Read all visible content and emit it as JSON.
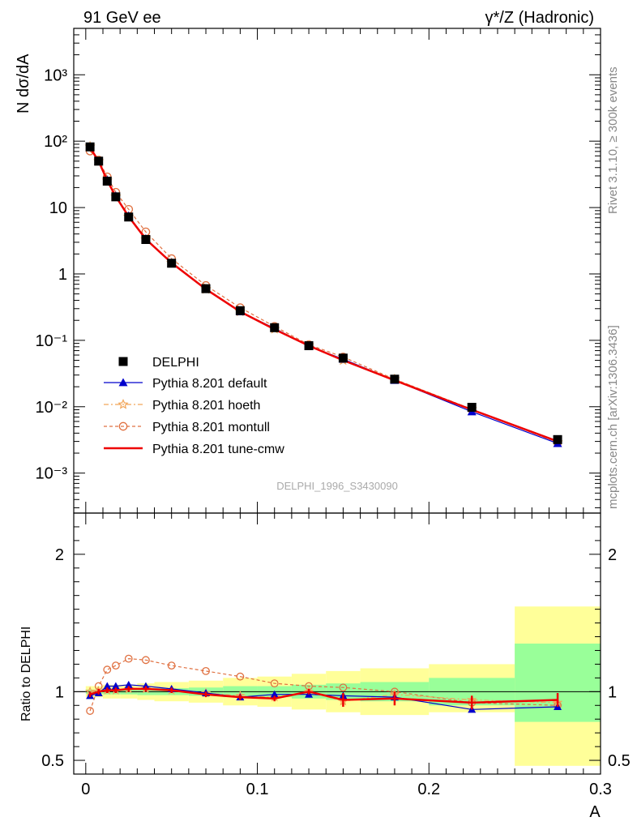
{
  "header": {
    "left_label": "91 GeV ee",
    "right_label": "γ*/Z (Hadronic)"
  },
  "side_text": {
    "top": "Rivet 3.1.10, ≥ 300k events",
    "bottom": "mcplots.cern.ch [arXiv:1306.3436]"
  },
  "watermark": "DELPHI_1996_S3430090",
  "colors": {
    "delphi": "#000000",
    "default": "#0000cc",
    "hoeth": "#f2a65a",
    "montull": "#e07040",
    "cmw": "#ee0000",
    "band_inner": "#99ff99",
    "band_outer": "#ffff99"
  },
  "chart_data": [
    {
      "type": "line",
      "title": "",
      "ylabel": "N dσ/dA",
      "xlabel": "A",
      "yscale": "log",
      "xlim": [
        -0.007,
        0.3
      ],
      "ylim": [
        0.00025,
        5000
      ],
      "y_tick_labels": [
        "10⁻³",
        "10⁻²",
        "10⁻¹",
        "1",
        "10",
        "10²",
        "10³"
      ],
      "x": [
        0.0025,
        0.0075,
        0.0125,
        0.0175,
        0.025,
        0.035,
        0.05,
        0.07,
        0.09,
        0.11,
        0.13,
        0.15,
        0.18,
        0.225,
        0.275
      ],
      "legend_position": "lower-left",
      "series": [
        {
          "name": "DELPHI",
          "key": "delphi",
          "values": [
            82,
            50,
            25,
            14.5,
            7.2,
            3.3,
            1.45,
            0.6,
            0.28,
            0.155,
            0.083,
            0.054,
            0.026,
            0.0098,
            0.0032
          ]
        },
        {
          "name": "Pythia 8.201 default",
          "key": "default",
          "values": [
            80,
            49,
            26,
            15,
            7.5,
            3.4,
            1.48,
            0.59,
            0.27,
            0.152,
            0.082,
            0.052,
            0.025,
            0.0084,
            0.0028
          ]
        },
        {
          "name": "Pythia 8.201 hoeth",
          "key": "hoeth",
          "values": [
            83,
            50,
            25.5,
            14.6,
            7.3,
            3.3,
            1.46,
            0.59,
            0.27,
            0.148,
            0.084,
            0.05,
            0.026,
            0.0092,
            0.0029
          ]
        },
        {
          "name": "Pythia 8.201 montull",
          "key": "montull",
          "values": [
            71,
            52,
            29,
            17,
            9.4,
            4.3,
            1.7,
            0.67,
            0.31,
            0.162,
            0.086,
            0.056,
            0.026,
            0.0091,
            0.0029
          ]
        },
        {
          "name": "Pythia 8.201 tune-cmw",
          "key": "cmw",
          "values": [
            80,
            50,
            25.5,
            14.7,
            7.3,
            3.35,
            1.47,
            0.59,
            0.27,
            0.147,
            0.083,
            0.05,
            0.025,
            0.009,
            0.003
          ]
        }
      ]
    },
    {
      "type": "line",
      "title": "",
      "ylabel": "Ratio to DELPHI",
      "xlabel": "A",
      "xlim": [
        -0.007,
        0.3
      ],
      "ylim": [
        0.4,
        2.3
      ],
      "y_ticks": [
        0.5,
        1,
        2
      ],
      "y_tick_labels": [
        "0.5",
        "1",
        "2"
      ],
      "x_ticks": [
        0,
        0.1,
        0.2,
        0.3
      ],
      "x_tick_labels": [
        "0",
        "0.1",
        "0.2",
        "0.3"
      ],
      "x": [
        0.0025,
        0.0075,
        0.0125,
        0.0175,
        0.025,
        0.035,
        0.05,
        0.07,
        0.09,
        0.11,
        0.13,
        0.15,
        0.18,
        0.225,
        0.275
      ],
      "bins": [
        [
          0,
          0.005
        ],
        [
          0.005,
          0.01
        ],
        [
          0.01,
          0.015
        ],
        [
          0.015,
          0.02
        ],
        [
          0.02,
          0.03
        ],
        [
          0.03,
          0.04
        ],
        [
          0.04,
          0.06
        ],
        [
          0.06,
          0.08
        ],
        [
          0.08,
          0.1
        ],
        [
          0.1,
          0.12
        ],
        [
          0.12,
          0.14
        ],
        [
          0.14,
          0.16
        ],
        [
          0.16,
          0.2
        ],
        [
          0.2,
          0.25
        ],
        [
          0.25,
          0.3
        ]
      ],
      "band_inner": [
        [
          0.985,
          1.015
        ],
        [
          0.985,
          1.015
        ],
        [
          0.98,
          1.02
        ],
        [
          0.98,
          1.02
        ],
        [
          0.98,
          1.02
        ],
        [
          0.975,
          1.025
        ],
        [
          0.975,
          1.025
        ],
        [
          0.97,
          1.03
        ],
        [
          0.96,
          1.04
        ],
        [
          0.96,
          1.04
        ],
        [
          0.95,
          1.05
        ],
        [
          0.94,
          1.06
        ],
        [
          0.93,
          1.07
        ],
        [
          0.9,
          1.1
        ],
        [
          0.78,
          1.35
        ]
      ],
      "band_outer": [
        [
          0.96,
          1.04
        ],
        [
          0.96,
          1.04
        ],
        [
          0.95,
          1.05
        ],
        [
          0.95,
          1.05
        ],
        [
          0.95,
          1.05
        ],
        [
          0.94,
          1.06
        ],
        [
          0.93,
          1.07
        ],
        [
          0.92,
          1.08
        ],
        [
          0.9,
          1.1
        ],
        [
          0.89,
          1.11
        ],
        [
          0.87,
          1.13
        ],
        [
          0.85,
          1.15
        ],
        [
          0.83,
          1.17
        ],
        [
          0.85,
          1.2
        ],
        [
          0.46,
          1.62
        ]
      ],
      "series": [
        {
          "name": "Pythia 8.201 default",
          "key": "default",
          "values": [
            0.97,
            0.99,
            1.04,
            1.04,
            1.05,
            1.04,
            1.02,
            0.99,
            0.96,
            0.98,
            0.98,
            0.97,
            0.96,
            0.87,
            0.89
          ]
        },
        {
          "name": "Pythia 8.201 hoeth",
          "key": "hoeth",
          "values": [
            1.0,
            1.0,
            1.01,
            1.01,
            1.02,
            1.02,
            1.01,
            0.99,
            0.97,
            0.96,
            1.0,
            0.93,
            0.98,
            0.94,
            0.92
          ]
        },
        {
          "name": "Pythia 8.201 montull",
          "key": "montull",
          "values": [
            0.86,
            1.04,
            1.16,
            1.19,
            1.24,
            1.23,
            1.19,
            1.15,
            1.11,
            1.06,
            1.04,
            1.03,
            1.0,
            0.92,
            0.9
          ]
        },
        {
          "name": "Pythia 8.201 tune-cmw",
          "key": "cmw",
          "values": [
            0.98,
            1.0,
            1.01,
            1.01,
            1.02,
            1.02,
            1.01,
            0.98,
            0.96,
            0.95,
            1.0,
            0.94,
            0.95,
            0.92,
            0.94
          ]
        }
      ]
    }
  ]
}
